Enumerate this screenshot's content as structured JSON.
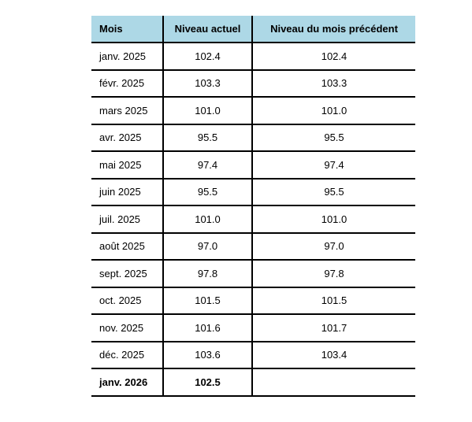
{
  "table": {
    "headers": [
      "Mois",
      "Niveau actuel",
      "Niveau du mois précédent"
    ],
    "rows": [
      {
        "mois": "janv. 2025",
        "actuel": "102.4",
        "precedent": "102.4"
      },
      {
        "mois": "févr. 2025",
        "actuel": "103.3",
        "precedent": "103.3"
      },
      {
        "mois": "mars 2025",
        "actuel": "101.0",
        "precedent": "101.0"
      },
      {
        "mois": "avr. 2025",
        "actuel": "95.5",
        "precedent": "95.5"
      },
      {
        "mois": "mai 2025",
        "actuel": "97.4",
        "precedent": "97.4"
      },
      {
        "mois": "juin 2025",
        "actuel": "95.5",
        "precedent": "95.5"
      },
      {
        "mois": "juil. 2025",
        "actuel": "101.0",
        "precedent": "101.0"
      },
      {
        "mois": "août 2025",
        "actuel": "97.0",
        "precedent": "97.0"
      },
      {
        "mois": "sept. 2025",
        "actuel": "97.8",
        "precedent": "97.8"
      },
      {
        "mois": "oct. 2025",
        "actuel": "101.5",
        "precedent": "101.5"
      },
      {
        "mois": "nov. 2025",
        "actuel": "101.6",
        "precedent": "101.7"
      },
      {
        "mois": "déc. 2025",
        "actuel": "103.6",
        "precedent": "103.4"
      },
      {
        "mois": "janv. 2026",
        "actuel": "102.5",
        "precedent": ""
      }
    ]
  },
  "colors": {
    "header_background": "#add8e6",
    "rule": "#000000"
  }
}
